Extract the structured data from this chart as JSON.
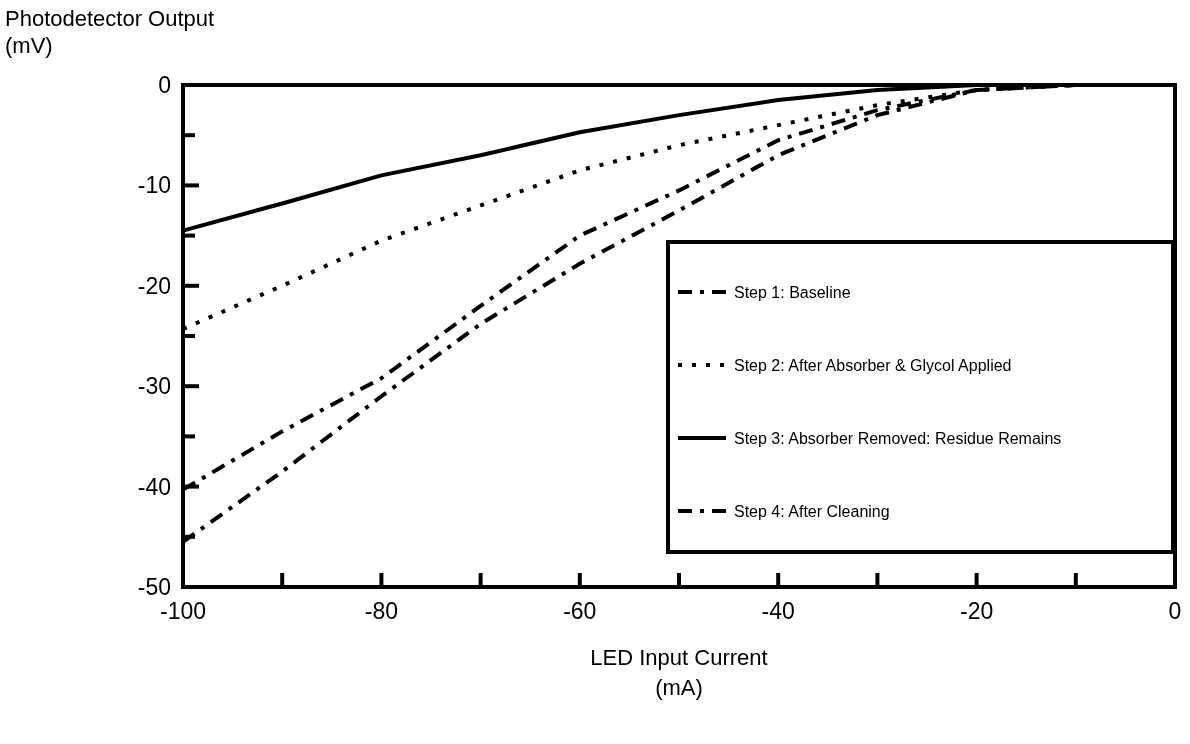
{
  "chart_data": {
    "type": "line",
    "xlabel": "LED Input Current (mA)",
    "ylabel": "Photodetector Output (mV)",
    "x": [
      -100,
      -90,
      -80,
      -70,
      -60,
      -50,
      -40,
      -30,
      -20,
      -10
    ],
    "series": [
      {
        "name": "Step 1: Baseline",
        "color": "#000000",
        "line_style": "dashed",
        "values": [
          -40.3,
          -34.5,
          -29.2,
          -22,
          -15,
          -10.5,
          -5.5,
          -2.5,
          -0.5,
          0
        ]
      },
      {
        "name": "Step 2: After Absorber & Glycol Applied",
        "color": "#000000",
        "line_style": "dotted",
        "values": [
          -24.3,
          -20,
          -15.5,
          -12,
          -8.5,
          -6,
          -4,
          -2,
          -0.5,
          0
        ]
      },
      {
        "name": "Step 3: Absorber Removed: Residue Remains",
        "color": "#000000",
        "line_style": "solid",
        "values": [
          -14.5,
          -11.8,
          -9,
          -7,
          -4.7,
          -3,
          -1.5,
          -0.5,
          0,
          0
        ]
      },
      {
        "name": "Step 4: After Cleaning",
        "color": "#000000",
        "line_style": "dashed",
        "values": [
          -45.5,
          -38.5,
          -31,
          -23.8,
          -17.8,
          -12.5,
          -7,
          -3,
          -0.5,
          0
        ]
      }
    ],
    "xlim": [
      -100,
      0
    ],
    "ylim": [
      -50,
      0
    ],
    "xticks": [
      -100,
      {
        "value": -90,
        "label": null
      },
      -80,
      {
        "value": -70,
        "label": null
      },
      -60,
      {
        "value": -50,
        "label": null
      },
      -40,
      {
        "value": -30,
        "label": null
      },
      -20,
      {
        "value": -10,
        "label": null
      },
      0
    ],
    "yticks": [
      -50,
      {
        "value": -45,
        "label": null
      },
      -40,
      {
        "value": -35,
        "label": null
      },
      -30,
      {
        "value": -25,
        "label": null
      },
      -20,
      {
        "value": -15,
        "label": null
      },
      -10,
      {
        "value": -5,
        "label": null
      },
      0
    ],
    "legend": "right",
    "grid": false,
    "marker": "none"
  }
}
